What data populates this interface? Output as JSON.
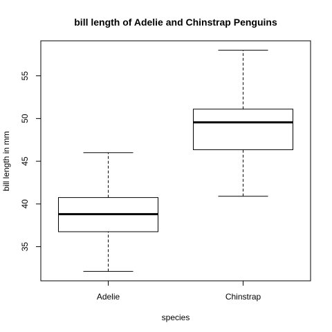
{
  "chart_data": {
    "type": "box",
    "title": "bill length of Adelie and Chinstrap Penguins",
    "xlabel": "species",
    "ylabel": "bill length in mm",
    "categories": [
      "Adelie",
      "Chinstrap"
    ],
    "series": [
      {
        "boxes": [
          {
            "category": "Adelie",
            "whisker_low": 32.1,
            "q1": 36.75,
            "median": 38.8,
            "q3": 40.75,
            "whisker_high": 46.0
          },
          {
            "category": "Chinstrap",
            "whisker_low": 40.9,
            "q1": 46.35,
            "median": 49.55,
            "q3": 51.1,
            "whisker_high": 58.0
          }
        ]
      }
    ],
    "ylim": [
      31.0,
      59.1
    ],
    "yticks": [
      35,
      40,
      45,
      50,
      55
    ],
    "grid": false,
    "legend": "none",
    "colors": {
      "box_fill": "#ffffff",
      "stroke": "#000000"
    }
  }
}
